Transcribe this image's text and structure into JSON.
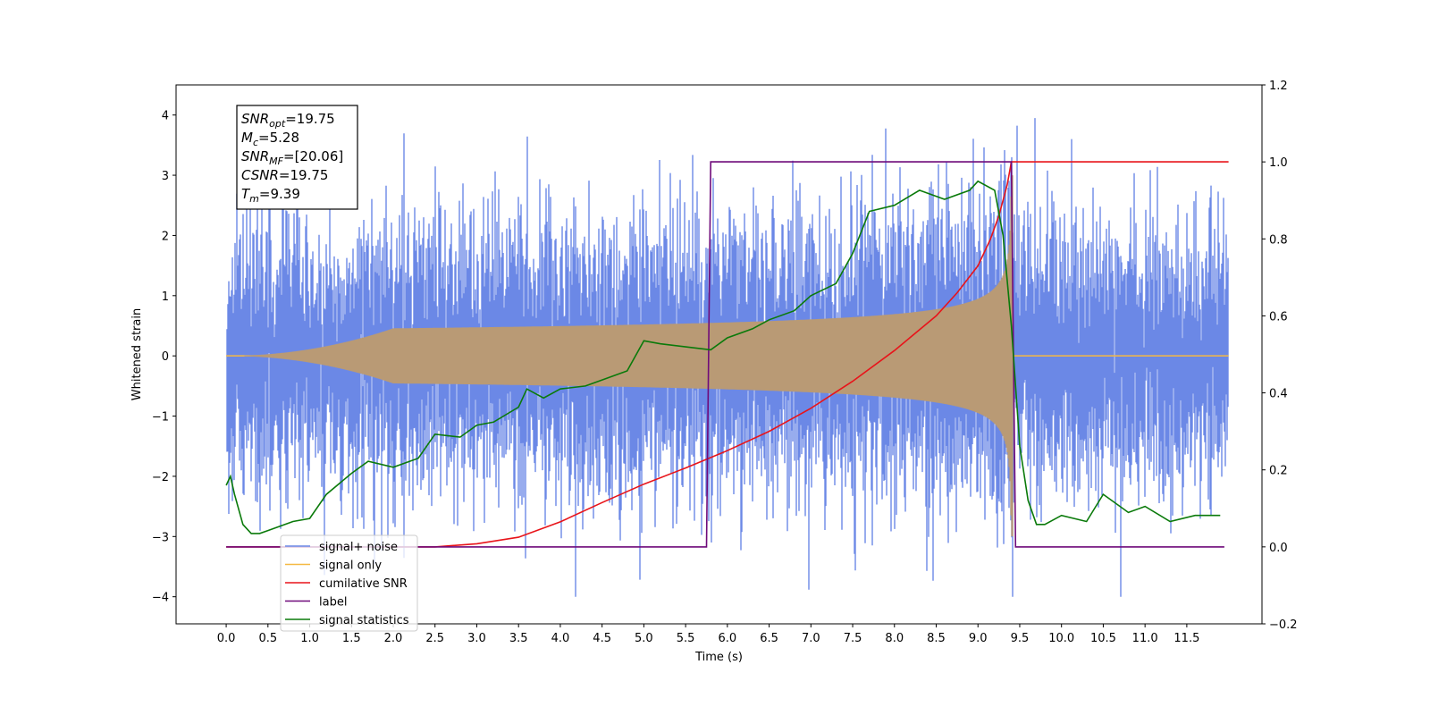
{
  "chart_data": {
    "type": "line",
    "xlabel": "Time (s)",
    "ylabel_left": "Whitened strain",
    "ylabel_right": "",
    "x_range": [
      -0.6,
      12.4
    ],
    "y_left_range": [
      -4.45,
      4.5
    ],
    "y_right_range": [
      -0.2,
      1.2
    ],
    "x_ticks": [
      "0.0",
      "0.5",
      "1.0",
      "1.5",
      "2.0",
      "2.5",
      "3.0",
      "3.5",
      "4.0",
      "4.5",
      "5.0",
      "5.5",
      "6.0",
      "6.5",
      "7.0",
      "7.5",
      "8.0",
      "8.5",
      "9.0",
      "9.5",
      "10.0",
      "10.5",
      "11.0",
      "11.5"
    ],
    "y_left_ticks": [
      "−4",
      "−3",
      "−2",
      "−1",
      "0",
      "1",
      "2",
      "3",
      "4"
    ],
    "y_right_ticks": [
      "−0.2",
      "0.0",
      "0.2",
      "0.4",
      "0.6",
      "0.8",
      "1.0",
      "1.2"
    ],
    "grid": false,
    "legend_position": "lower-left",
    "annotation": {
      "lines": [
        {
          "sym": "SNR",
          "sub": "opt",
          "value": "=19.75"
        },
        {
          "sym": "M",
          "sub": "c",
          "value": "=5.28"
        },
        {
          "sym": "SNR",
          "sub": "MF",
          "value": "=[20.06]"
        },
        {
          "sym": "CSNR",
          "sub": "",
          "value": "=19.75"
        },
        {
          "sym": "T",
          "sub": "m",
          "value": "=9.39"
        }
      ]
    },
    "series": [
      {
        "name": "signal+ noise",
        "color": "#6b88e6",
        "axis": "left",
        "kind": "white-noise",
        "x_start": 0.0,
        "x_end": 12.0,
        "noise_std": 1.0,
        "y_min": -4.0,
        "y_max": 3.95
      },
      {
        "name": "signal only",
        "color": "#f5b942",
        "axis": "left",
        "kind": "chirp",
        "x_start": 0.0,
        "x_end": 12.0,
        "merger_time": 9.4,
        "peak_amplitude": 3.0
      },
      {
        "name": "cumilative SNR",
        "color": "#e8141a",
        "axis": "right",
        "x": [
          0.0,
          2.5,
          3.0,
          3.5,
          4.0,
          4.5,
          5.0,
          5.5,
          6.0,
          6.5,
          7.0,
          7.5,
          8.0,
          8.5,
          8.75,
          9.0,
          9.15,
          9.25,
          9.35,
          9.4,
          12.0
        ],
        "y": [
          0.0,
          0.0,
          0.008,
          0.025,
          0.065,
          0.115,
          0.163,
          0.205,
          0.25,
          0.3,
          0.36,
          0.43,
          0.51,
          0.6,
          0.66,
          0.73,
          0.8,
          0.86,
          0.94,
          1.0,
          1.0
        ]
      },
      {
        "name": "label",
        "color": "#6f0a7a",
        "axis": "right",
        "x": [
          0.0,
          5.75,
          5.8,
          9.4,
          9.45,
          11.95
        ],
        "y": [
          0.0,
          0.0,
          1.0,
          1.0,
          0.0,
          0.0
        ]
      },
      {
        "name": "signal statistics",
        "color": "#0a7a0a",
        "axis": "left",
        "x": [
          0.0,
          0.05,
          0.1,
          0.2,
          0.3,
          0.4,
          0.5,
          0.6,
          0.8,
          1.0,
          1.2,
          1.5,
          1.7,
          2.0,
          2.3,
          2.5,
          2.8,
          3.0,
          3.2,
          3.5,
          3.6,
          3.8,
          4.0,
          4.3,
          4.5,
          4.8,
          5.0,
          5.2,
          5.5,
          5.8,
          6.0,
          6.3,
          6.5,
          6.8,
          7.0,
          7.3,
          7.5,
          7.7,
          8.0,
          8.3,
          8.6,
          8.9,
          9.0,
          9.2,
          9.3,
          9.4,
          9.45,
          9.5,
          9.6,
          9.7,
          9.8,
          10.0,
          10.3,
          10.5,
          10.8,
          11.0,
          11.3,
          11.6,
          11.9
        ],
        "y": [
          -2.15,
          -2.0,
          -2.3,
          -2.8,
          -2.95,
          -2.95,
          -2.9,
          -2.85,
          -2.75,
          -2.7,
          -2.3,
          -1.95,
          -1.75,
          -1.85,
          -1.7,
          -1.3,
          -1.35,
          -1.15,
          -1.1,
          -0.85,
          -0.55,
          -0.7,
          -0.55,
          -0.5,
          -0.4,
          -0.25,
          0.25,
          0.2,
          0.15,
          0.1,
          0.3,
          0.45,
          0.6,
          0.75,
          1.0,
          1.2,
          1.7,
          2.4,
          2.5,
          2.75,
          2.6,
          2.75,
          2.9,
          2.75,
          2.0,
          0.5,
          -0.5,
          -1.5,
          -2.4,
          -2.8,
          -2.8,
          -2.65,
          -2.75,
          -2.3,
          -2.6,
          -2.5,
          -2.75,
          -2.65,
          -2.65
        ]
      }
    ]
  }
}
